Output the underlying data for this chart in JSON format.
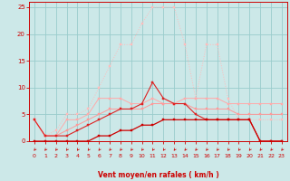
{
  "x": [
    0,
    1,
    2,
    3,
    4,
    5,
    6,
    7,
    8,
    9,
    10,
    11,
    12,
    13,
    14,
    15,
    16,
    17,
    18,
    19,
    20,
    21,
    22,
    23
  ],
  "line_dotted": [
    4,
    1,
    2,
    5,
    5,
    6,
    10,
    14,
    18,
    18,
    22,
    25,
    25,
    25,
    18,
    8,
    18,
    18,
    8,
    4,
    4,
    4,
    4,
    4
  ],
  "line_pink_solid": [
    4,
    1,
    1,
    4,
    4,
    5,
    8,
    8,
    8,
    7,
    7,
    8,
    7,
    7,
    8,
    8,
    8,
    8,
    7,
    7,
    7,
    7,
    7,
    7
  ],
  "line_light_pink": [
    4,
    1,
    1,
    2,
    3,
    4,
    5,
    6,
    6,
    6,
    6,
    7,
    7,
    7,
    7,
    6,
    6,
    6,
    6,
    5,
    5,
    5,
    5,
    5
  ],
  "line_red_medium": [
    4,
    1,
    1,
    1,
    2,
    3,
    4,
    5,
    6,
    6,
    7,
    11,
    8,
    7,
    7,
    5,
    4,
    4,
    4,
    4,
    4,
    0,
    0,
    0
  ],
  "line_red_dark": [
    0,
    0,
    0,
    0,
    0,
    0,
    1,
    1,
    2,
    2,
    3,
    3,
    4,
    4,
    4,
    4,
    4,
    4,
    4,
    4,
    4,
    0,
    0,
    0
  ],
  "xlabel": "Vent moyen/en rafales ( km/h )",
  "ylim": [
    0,
    26
  ],
  "xlim": [
    -0.5,
    23.5
  ],
  "yticks": [
    0,
    5,
    10,
    15,
    20,
    25
  ],
  "xticks": [
    0,
    1,
    2,
    3,
    4,
    5,
    6,
    7,
    8,
    9,
    10,
    11,
    12,
    13,
    14,
    15,
    16,
    17,
    18,
    19,
    20,
    21,
    22,
    23
  ],
  "bg_color": "#cce8e8",
  "grid_color": "#99cccc",
  "color_dotted": "#ffbbbb",
  "color_pink_solid": "#ffaaaa",
  "color_light_pink": "#ff9999",
  "color_red_medium": "#dd2222",
  "color_red_dark": "#cc0000"
}
